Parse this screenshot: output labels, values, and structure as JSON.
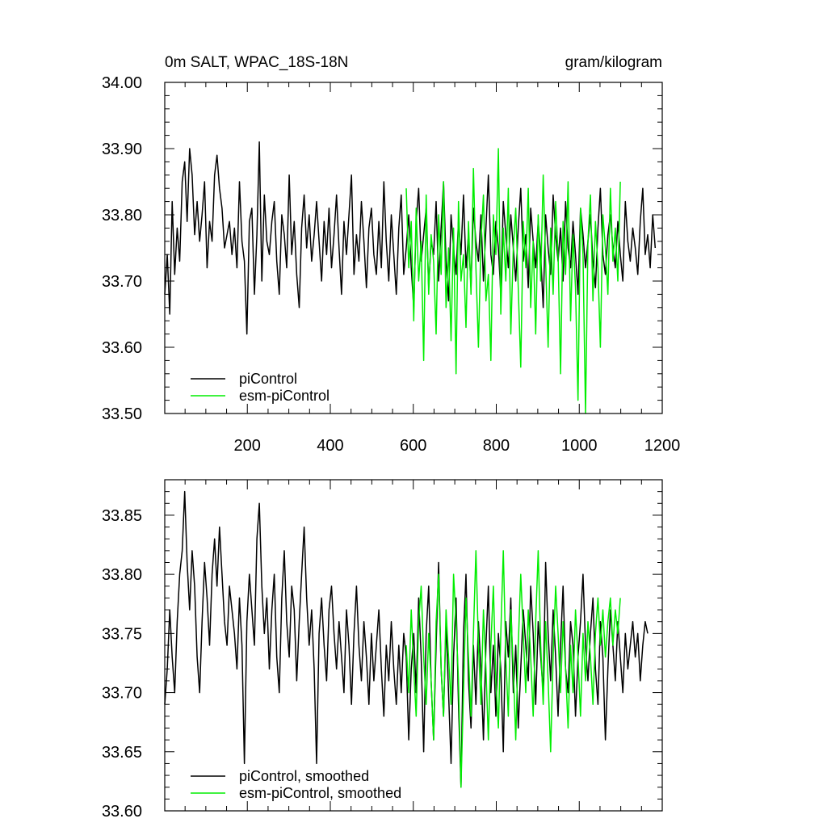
{
  "chart_data": [
    {
      "type": "line",
      "title": "0m SALT, WPAC_18S-18N",
      "units": "gram/kilogram",
      "xlim": [
        1,
        1200
      ],
      "ylim": [
        33.5,
        34.0
      ],
      "x_ticks": [
        200,
        400,
        600,
        800,
        1000,
        1200
      ],
      "x_tick_labels": [
        "200",
        "400",
        "600",
        "800",
        "1000",
        "1200"
      ],
      "y_ticks": [
        33.5,
        33.6,
        33.7,
        33.8,
        33.9,
        34.0
      ],
      "y_tick_labels": [
        "33.50",
        "33.60",
        "33.70",
        "33.80",
        "33.90",
        "34.00"
      ],
      "legend_position": "lower-left",
      "series": [
        {
          "name": "piControl",
          "color": "#000000",
          "x_start": 1,
          "x_step": 6,
          "values": [
            33.68,
            33.74,
            33.65,
            33.82,
            33.71,
            33.78,
            33.73,
            33.85,
            33.88,
            33.79,
            33.9,
            33.86,
            33.77,
            33.82,
            33.76,
            33.8,
            33.85,
            33.72,
            33.79,
            33.76,
            33.86,
            33.89,
            33.84,
            33.81,
            33.75,
            33.77,
            33.79,
            33.74,
            33.78,
            33.72,
            33.85,
            33.76,
            33.73,
            33.62,
            33.79,
            33.81,
            33.68,
            33.77,
            33.91,
            33.7,
            33.83,
            33.76,
            33.74,
            33.79,
            33.82,
            33.73,
            33.68,
            33.8,
            33.77,
            33.72,
            33.86,
            33.74,
            33.79,
            33.71,
            33.66,
            33.78,
            33.83,
            33.75,
            33.8,
            33.73,
            33.77,
            33.82,
            33.76,
            33.7,
            33.79,
            33.74,
            33.81,
            33.72,
            33.77,
            33.83,
            33.75,
            33.68,
            33.79,
            33.74,
            33.8,
            33.86,
            33.71,
            33.77,
            33.73,
            33.82,
            33.76,
            33.69,
            33.78,
            33.81,
            33.74,
            33.71,
            33.79,
            33.72,
            33.85,
            33.76,
            33.7,
            33.8,
            33.74,
            33.68,
            33.78,
            33.83,
            33.71,
            33.75,
            33.8,
            33.72,
            33.66,
            33.79,
            33.84,
            33.73,
            33.77,
            33.81,
            33.69,
            33.76,
            33.74,
            33.82,
            33.7,
            33.78,
            33.85,
            33.73,
            33.67,
            33.8,
            33.75,
            33.71,
            33.79,
            33.74,
            33.83,
            33.72,
            33.77,
            33.69,
            33.81,
            33.76,
            33.73,
            33.8,
            33.7,
            33.78,
            33.86,
            33.74,
            33.71,
            33.79,
            33.75,
            33.68,
            33.82,
            33.77,
            33.72,
            33.8,
            33.75,
            33.7,
            33.78,
            33.84,
            33.73,
            33.77,
            33.69,
            33.81,
            33.76,
            33.72,
            33.79,
            33.74,
            33.66,
            33.8,
            33.75,
            33.71,
            33.83,
            33.77,
            33.73,
            33.78,
            33.7,
            33.82,
            33.75,
            33.72,
            33.79,
            33.74,
            33.68,
            33.81,
            33.77,
            33.72,
            33.76,
            33.8,
            33.73,
            33.69,
            33.78,
            33.84,
            33.74,
            33.71,
            33.77,
            33.8,
            33.75,
            33.72,
            33.79,
            33.74,
            33.7,
            33.82,
            33.76,
            33.73,
            33.78,
            33.75,
            33.71,
            33.79,
            33.84,
            33.74,
            33.77,
            33.72,
            33.8,
            33.75
          ]
        },
        {
          "name": "esm-piControl",
          "color": "#00ee00",
          "x_start": 583,
          "x_step": 6,
          "values": [
            33.84,
            33.72,
            33.79,
            33.64,
            33.81,
            33.7,
            33.76,
            33.58,
            33.83,
            33.68,
            33.77,
            33.73,
            33.62,
            33.8,
            33.71,
            33.85,
            33.66,
            33.75,
            33.61,
            33.78,
            33.56,
            33.82,
            33.7,
            33.74,
            33.63,
            33.79,
            33.68,
            33.87,
            33.72,
            33.6,
            33.76,
            33.83,
            33.67,
            33.71,
            33.58,
            33.8,
            33.74,
            33.9,
            33.65,
            33.78,
            33.7,
            33.84,
            33.62,
            33.75,
            33.81,
            33.69,
            33.57,
            33.79,
            33.72,
            33.84,
            33.66,
            33.76,
            33.62,
            33.8,
            33.7,
            33.86,
            33.73,
            33.6,
            33.78,
            33.68,
            33.82,
            33.74,
            33.56,
            33.79,
            33.71,
            33.85,
            33.64,
            33.77,
            33.69,
            33.52,
            33.81,
            33.74,
            33.5,
            33.76,
            33.83,
            33.67,
            33.79,
            33.72,
            33.6,
            33.8,
            33.75,
            33.68,
            33.84,
            33.73,
            33.78,
            33.7,
            33.85
          ]
        }
      ]
    },
    {
      "type": "line",
      "xlim": [
        1,
        1200
      ],
      "ylim": [
        33.6,
        33.88
      ],
      "y_ticks": [
        33.6,
        33.65,
        33.7,
        33.75,
        33.8,
        33.85
      ],
      "y_tick_labels": [
        "33.60",
        "33.65",
        "33.70",
        "33.75",
        "33.80",
        "33.85"
      ],
      "legend_position": "lower-left",
      "series": [
        {
          "name": "piControl, smoothed",
          "color": "#000000",
          "x_start": 1,
          "x_step": 6,
          "values": [
            33.69,
            33.72,
            33.77,
            33.73,
            33.7,
            33.76,
            33.8,
            33.82,
            33.87,
            33.81,
            33.77,
            33.82,
            33.79,
            33.73,
            33.7,
            33.76,
            33.81,
            33.78,
            33.74,
            33.8,
            33.83,
            33.79,
            33.84,
            33.8,
            33.76,
            33.74,
            33.79,
            33.77,
            33.75,
            33.72,
            33.78,
            33.74,
            33.64,
            33.76,
            33.8,
            33.77,
            33.74,
            33.83,
            33.86,
            33.79,
            33.75,
            33.78,
            33.72,
            33.77,
            33.8,
            33.73,
            33.7,
            33.78,
            33.82,
            33.76,
            33.73,
            33.79,
            33.77,
            33.71,
            33.76,
            33.8,
            33.84,
            33.78,
            33.74,
            33.77,
            33.72,
            33.64,
            33.75,
            33.78,
            33.74,
            33.71,
            33.77,
            33.79,
            33.75,
            33.72,
            33.76,
            33.73,
            33.7,
            33.77,
            33.74,
            33.69,
            33.75,
            33.79,
            33.74,
            33.71,
            33.76,
            33.73,
            33.69,
            33.75,
            33.71,
            33.74,
            33.77,
            33.72,
            33.68,
            33.74,
            33.71,
            33.76,
            33.72,
            33.69,
            33.74,
            33.7,
            33.75,
            33.73,
            33.66,
            33.72,
            33.75,
            33.7,
            33.78,
            33.73,
            33.65,
            33.75,
            33.79,
            33.71,
            33.66,
            33.74,
            33.81,
            33.72,
            33.68,
            33.76,
            33.7,
            33.64,
            33.73,
            33.78,
            33.69,
            33.62,
            33.75,
            33.8,
            33.71,
            33.67,
            33.74,
            33.69,
            33.76,
            33.72,
            33.66,
            33.74,
            33.79,
            33.7,
            33.74,
            33.68,
            33.75,
            33.72,
            33.65,
            33.76,
            33.73,
            33.78,
            33.7,
            33.74,
            33.67,
            33.72,
            33.77,
            33.74,
            33.71,
            33.79,
            33.75,
            33.69,
            33.76,
            33.73,
            33.7,
            33.81,
            33.75,
            33.71,
            33.77,
            33.73,
            33.68,
            33.74,
            33.79,
            33.72,
            33.7,
            33.76,
            33.74,
            33.68,
            33.73,
            33.76,
            33.8,
            33.74,
            33.71,
            33.75,
            33.78,
            33.72,
            33.69,
            33.76,
            33.73,
            33.66,
            33.72,
            33.77,
            33.74,
            33.71,
            33.76,
            33.73,
            33.7,
            33.75,
            33.72,
            33.74,
            33.76,
            33.73,
            33.75,
            33.71,
            33.74,
            33.76,
            33.75
          ]
        },
        {
          "name": "esm-piControl, smoothed",
          "color": "#00ee00",
          "x_start": 583,
          "x_step": 6,
          "values": [
            33.74,
            33.7,
            33.77,
            33.72,
            33.68,
            33.76,
            33.79,
            33.73,
            33.69,
            33.75,
            33.71,
            33.66,
            33.76,
            33.8,
            33.72,
            33.68,
            33.77,
            33.73,
            33.69,
            33.8,
            33.76,
            33.71,
            33.62,
            33.7,
            33.78,
            33.73,
            33.68,
            33.75,
            33.82,
            33.74,
            33.69,
            33.77,
            33.72,
            33.66,
            33.74,
            33.79,
            33.71,
            33.67,
            33.75,
            33.82,
            33.73,
            33.68,
            33.77,
            33.72,
            33.66,
            33.74,
            33.8,
            33.75,
            33.7,
            33.77,
            33.73,
            33.68,
            33.76,
            33.82,
            33.74,
            33.69,
            33.76,
            33.71,
            33.65,
            33.73,
            33.79,
            33.75,
            33.7,
            33.76,
            33.72,
            33.67,
            33.74,
            33.7,
            33.77,
            33.73,
            33.68,
            33.75,
            33.71,
            33.76,
            33.73,
            33.69,
            33.75,
            33.78,
            33.74,
            33.77,
            33.73,
            33.76,
            33.78,
            33.74,
            33.77,
            33.75,
            33.78
          ]
        }
      ]
    }
  ]
}
